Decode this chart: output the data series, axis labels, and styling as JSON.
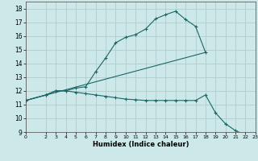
{
  "xlabel": "Humidex (Indice chaleur)",
  "xlim": [
    0,
    23
  ],
  "ylim": [
    9,
    18.5
  ],
  "xticks": [
    0,
    2,
    3,
    4,
    5,
    6,
    7,
    8,
    9,
    10,
    11,
    12,
    13,
    14,
    15,
    16,
    17,
    18,
    19,
    20,
    21,
    22,
    23
  ],
  "yticks": [
    9,
    10,
    11,
    12,
    13,
    14,
    15,
    16,
    17,
    18
  ],
  "bg_color": "#cde8e8",
  "grid_color": "#b0cccc",
  "line_color": "#1a6666",
  "line1_x": [
    0,
    2,
    3,
    4,
    5,
    6,
    7,
    8,
    9,
    10,
    11,
    12,
    13,
    14,
    15,
    16,
    17,
    18
  ],
  "line1_y": [
    11.3,
    11.7,
    12.0,
    12.0,
    12.2,
    12.3,
    13.4,
    14.4,
    15.5,
    15.9,
    16.1,
    16.5,
    17.25,
    17.55,
    17.8,
    17.2,
    16.7,
    14.8
  ],
  "line2_x": [
    0,
    2,
    3,
    4,
    5,
    6,
    7,
    8,
    9,
    10,
    11,
    12,
    13,
    14,
    15,
    16,
    17,
    18,
    19,
    20,
    21,
    22,
    23
  ],
  "line2_y": [
    11.3,
    11.7,
    12.0,
    12.0,
    11.9,
    11.8,
    11.7,
    11.6,
    11.5,
    11.4,
    11.35,
    11.3,
    11.3,
    11.3,
    11.3,
    11.3,
    11.3,
    11.7,
    10.4,
    9.6,
    9.1,
    8.8,
    8.7
  ],
  "line3_x": [
    0,
    18
  ],
  "line3_y": [
    11.3,
    14.8
  ]
}
